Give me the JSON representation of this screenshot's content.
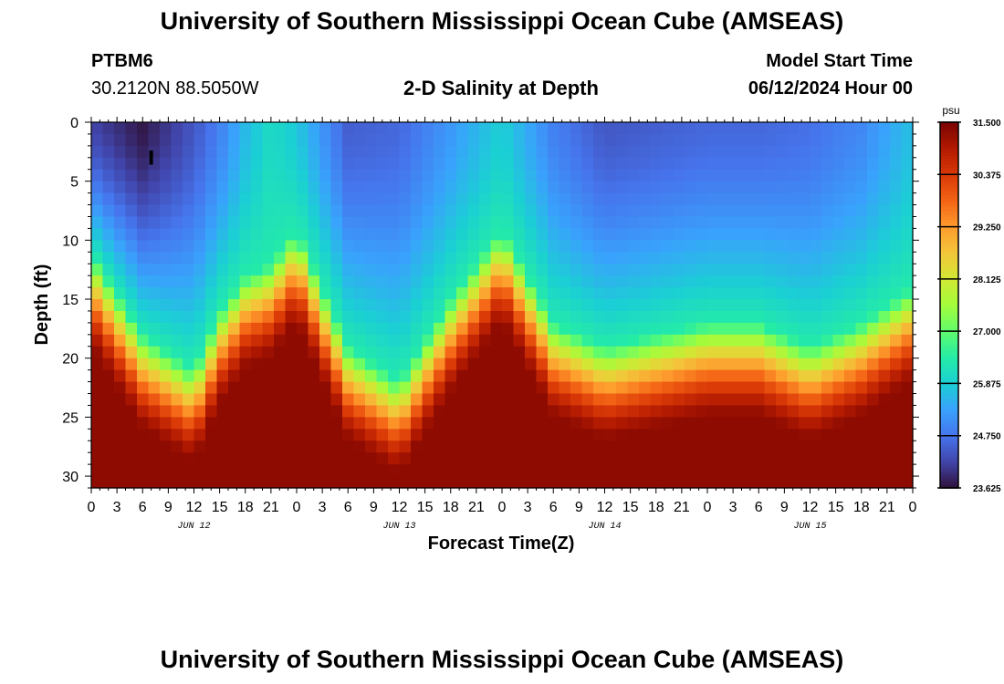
{
  "header": {
    "title": "University of Southern Mississippi Ocean Cube (AMSEAS)",
    "station_id": "PTBM6",
    "coordinates": "30.2120N  88.5050W",
    "plot_title": "2-D Salinity at Depth",
    "model_start_label": "Model Start Time",
    "model_start_value": "06/12/2024 Hour 00"
  },
  "footer": {
    "title": "University of Southern Mississippi Ocean Cube (AMSEAS)"
  },
  "colors": {
    "scale": [
      "#30123b",
      "#4145ab",
      "#4675ed",
      "#39a2fc",
      "#1bcfd4",
      "#24eca6",
      "#61fc6c",
      "#a4fc3b",
      "#d1e834",
      "#f3c63a",
      "#fe9b2d",
      "#f36315",
      "#d93806",
      "#b11901",
      "#7a0402"
    ]
  },
  "chart_data": {
    "type": "heatmap",
    "title": "2-D Salinity at Depth",
    "xlabel": "Forecast Time(Z)",
    "ylabel": "Depth (ft)",
    "units": "psu",
    "xlim_hours": [
      0,
      96
    ],
    "ylim_ft": [
      0,
      31
    ],
    "y_ticks": [
      "0",
      "5",
      "10",
      "15",
      "20",
      "25",
      "30"
    ],
    "x_tick_labels": [
      "0",
      "3",
      "6",
      "9",
      "12",
      "15",
      "18",
      "21",
      "0",
      "3",
      "6",
      "9",
      "12",
      "15",
      "18",
      "21",
      "0",
      "3",
      "6",
      "9",
      "12",
      "15",
      "18",
      "21",
      "0",
      "3",
      "6",
      "9",
      "12",
      "15",
      "18",
      "21",
      "0"
    ],
    "day_labels": [
      {
        "label": "JUN 12",
        "hour": 12
      },
      {
        "label": "JUN 13",
        "hour": 36
      },
      {
        "label": "JUN 14",
        "hour": 60
      },
      {
        "label": "JUN 15",
        "hour": 84
      }
    ],
    "colorbar": {
      "min": 23.625,
      "max": 31.5,
      "ticks": [
        "31.500",
        "30.375",
        "29.250",
        "28.125",
        "27.000",
        "25.875",
        "24.750",
        "23.625"
      ]
    },
    "halocline_depth_ft": {
      "hours": [
        0,
        6,
        12,
        15,
        18,
        21,
        24,
        30,
        36,
        42,
        48,
        54,
        60,
        66,
        72,
        78,
        84,
        90,
        96
      ],
      "depth": [
        11,
        18,
        21,
        16,
        13,
        12,
        9,
        19,
        22,
        15,
        9,
        17,
        19,
        18,
        17,
        17,
        19,
        17,
        14
      ]
    },
    "surface_salinity_psu": {
      "hours": [
        0,
        6,
        12,
        15,
        18,
        21,
        24,
        30,
        36,
        42,
        48,
        54,
        60,
        66,
        72,
        78,
        84,
        90,
        96
      ],
      "values": [
        24.2,
        23.7,
        24.4,
        24.9,
        25.6,
        26.1,
        25.8,
        24.5,
        24.6,
        25.2,
        25.9,
        24.9,
        24.4,
        24.5,
        24.6,
        24.6,
        24.7,
        25.0,
        25.7
      ]
    },
    "bottom_salinity_psu": 31.3
  }
}
